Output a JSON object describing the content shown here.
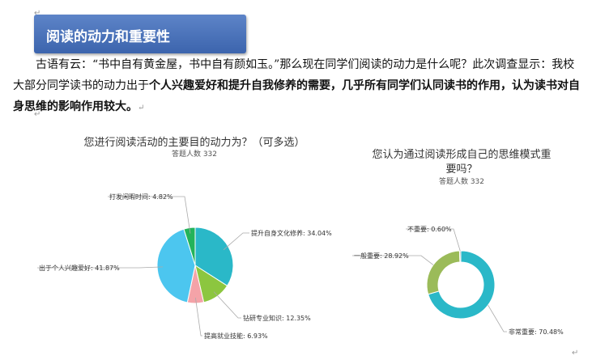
{
  "heading": "阅读的动力和重要性",
  "paragraph": {
    "part1": "古语有云：“书中自有黄金屋，书中自有颜如玉。”那么现在同学们阅读的动力是什么呢？此次调查显示：我校大部分同学读书的动力出于",
    "bold1": "个人兴趣爱好和提升自我修养的需要，几乎所有同学们认同读书的作用，认为读书对自身思维的影响作用较大。"
  },
  "colors": {
    "banner": "#4a72b8",
    "teal": "#2ab8c8",
    "green": "#8cc63f",
    "pink": "#f4a3a8",
    "lightblue": "#4cc6ef",
    "darkgreen": "#23b35a",
    "olive": "#9bbb59"
  },
  "chart_data": [
    {
      "type": "pie",
      "title": "您进行阅读活动的主要目的动力为？（可多选）",
      "subtitle": "答题人数 332",
      "categories": [
        "提升自身文化修养",
        "钻研专业知识",
        "提高就业技能",
        "出于个人兴趣爱好",
        "打发闲暇时间"
      ],
      "values": [
        34.04,
        12.35,
        6.93,
        41.87,
        4.82
      ],
      "labels": [
        "提升自身文化修养: 34.04%",
        "钻研专业知识: 12.35%",
        "提高就业技能: 6.93%",
        "出于个人兴趣爱好: 41.87%",
        "打发闲暇时间: 4.82%"
      ],
      "colors": [
        "#2ab8c8",
        "#8cc63f",
        "#f4a3a8",
        "#4cc6ef",
        "#23b35a"
      ]
    },
    {
      "type": "pie",
      "title_line1": "您认为通过阅读形成自己的思维模式重",
      "title_line2": "要吗？",
      "subtitle": "答题人数 332",
      "categories": [
        "非常重要",
        "一般重要",
        "不重要"
      ],
      "values": [
        70.48,
        28.92,
        0.6
      ],
      "labels": [
        "非常重要: 70.48%",
        "一般重要: 28.92%",
        "不重要: 0.60%"
      ],
      "colors": [
        "#2ab8c8",
        "#9bbb59",
        "#aaaaaa"
      ]
    }
  ]
}
